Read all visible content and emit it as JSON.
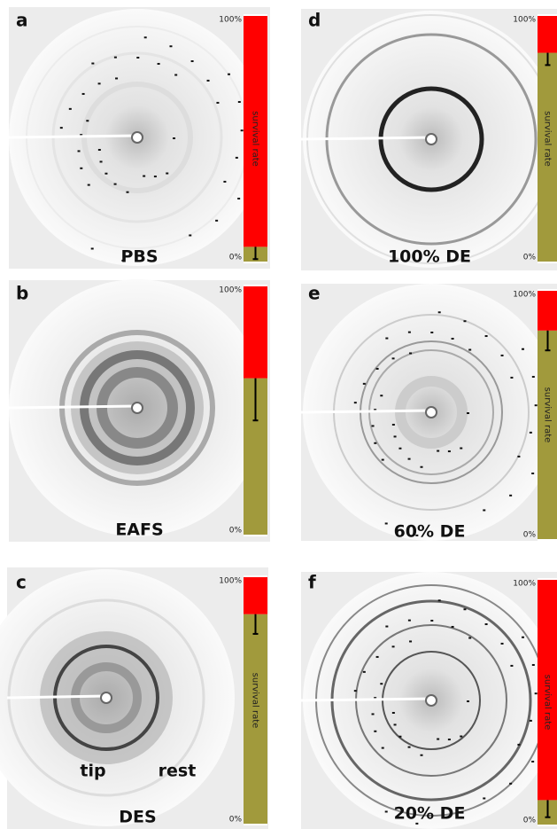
{
  "chart_data": [
    {
      "type": "bar",
      "panel": "a",
      "label": "PBS",
      "ylabel": "survival rate",
      "ylim": [
        0,
        100
      ],
      "yticks": [
        {
          "value": 0,
          "label": "0%"
        },
        {
          "value": 100,
          "label": "100%"
        }
      ],
      "series": [
        {
          "color": "#a19a3c",
          "values": [
            6
          ],
          "errors": [
            5
          ]
        },
        {
          "color": "#ff0000",
          "values": [
            94
          ]
        }
      ]
    },
    {
      "type": "bar",
      "panel": "b",
      "label": "EAFS",
      "ylim": [
        0,
        100
      ],
      "yticks": [
        {
          "value": 0,
          "label": "0%"
        },
        {
          "value": 100,
          "label": "100%"
        }
      ],
      "series": [
        {
          "color": "#a19a3c",
          "values": [
            63
          ],
          "errors": [
            17
          ]
        },
        {
          "color": "#ff0000",
          "values": [
            37
          ]
        }
      ]
    },
    {
      "type": "bar",
      "panel": "c",
      "label": "DES",
      "annotations": [
        "tip",
        "rest"
      ],
      "ylabel": "survival rate",
      "ylim": [
        0,
        100
      ],
      "yticks": [
        {
          "value": 0,
          "label": "0%"
        },
        {
          "value": 100,
          "label": "100%"
        }
      ],
      "series": [
        {
          "color": "#a19a3c",
          "values": [
            85
          ],
          "errors": [
            8
          ]
        },
        {
          "color": "#ff0000",
          "values": [
            15
          ]
        }
      ]
    },
    {
      "type": "bar",
      "panel": "d",
      "label": "100% DE",
      "ylabel": "survival rate",
      "ylim": [
        0,
        100
      ],
      "yticks": [
        {
          "value": 0,
          "label": "0%"
        },
        {
          "value": 100,
          "label": "100%"
        }
      ],
      "series": [
        {
          "color": "#a19a3c",
          "values": [
            85
          ],
          "errors": [
            5
          ]
        },
        {
          "color": "#ff0000",
          "values": [
            15
          ]
        }
      ]
    },
    {
      "type": "bar",
      "panel": "e",
      "label": "60% DE",
      "ylabel": "survival rate",
      "ylim": [
        0,
        100
      ],
      "yticks": [
        {
          "value": 0,
          "label": "0%"
        },
        {
          "value": 100,
          "label": "100%"
        }
      ],
      "series": [
        {
          "color": "#a19a3c",
          "values": [
            84
          ],
          "errors": [
            8
          ]
        },
        {
          "color": "#ff0000",
          "values": [
            16
          ]
        }
      ]
    },
    {
      "type": "bar",
      "panel": "f",
      "label": "20% DE",
      "ylabel": "survival rate",
      "ylim": [
        0,
        100
      ],
      "yticks": [
        {
          "value": 0,
          "label": "0%"
        },
        {
          "value": 100,
          "label": "100%"
        }
      ],
      "series": [
        {
          "color": "#a19a3c",
          "values": [
            10
          ],
          "errors": [
            7
          ]
        },
        {
          "color": "#ff0000",
          "values": [
            90
          ]
        }
      ]
    }
  ]
}
